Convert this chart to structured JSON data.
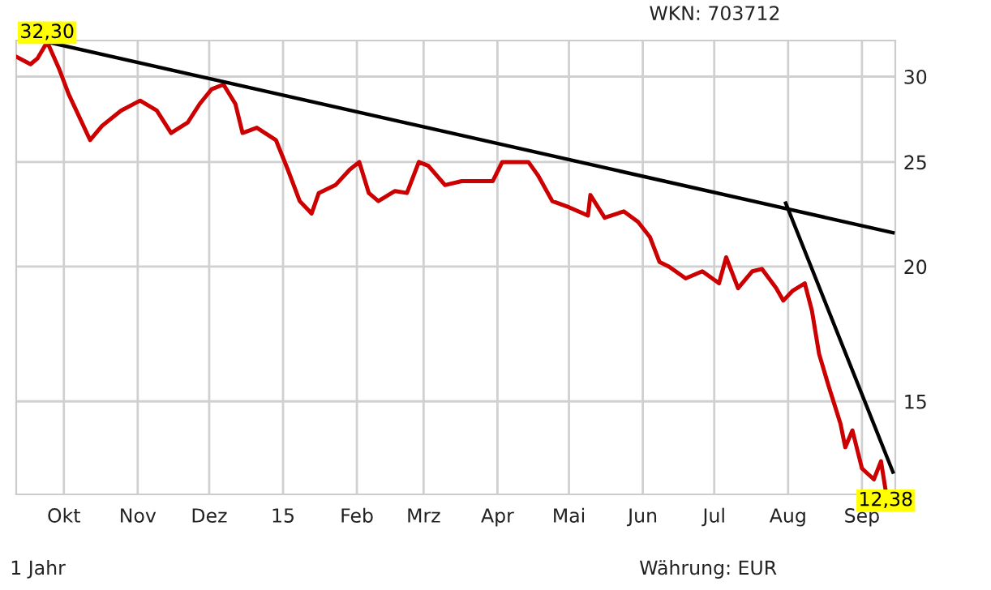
{
  "chart_data": {
    "type": "line",
    "log": "y",
    "grid": true,
    "x": [
      "2014-09-11",
      "2014-09-17",
      "2014-09-20",
      "2014-09-24",
      "2014-09-29",
      "2014-10-03",
      "2014-10-12",
      "2014-10-17",
      "2014-10-25",
      "2014-11-02",
      "2014-11-09",
      "2014-11-15",
      "2014-11-22",
      "2014-11-27",
      "2014-12-02",
      "2014-12-07",
      "2014-12-12",
      "2014-12-15",
      "2014-12-21",
      "2014-12-29",
      "2015-01-03",
      "2015-01-08",
      "2015-01-13",
      "2015-01-16",
      "2015-01-23",
      "2015-01-29",
      "2015-02-02",
      "2015-02-06",
      "2015-02-10",
      "2015-02-17",
      "2015-02-22",
      "2015-02-27",
      "2015-03-03",
      "2015-03-10",
      "2015-03-17",
      "2015-03-23",
      "2015-03-30",
      "2015-04-03",
      "2015-04-14",
      "2015-04-18",
      "2015-04-24",
      "2015-05-01",
      "2015-05-09",
      "2015-05-10",
      "2015-05-16",
      "2015-05-24",
      "2015-05-30",
      "2015-06-04",
      "2015-06-08",
      "2015-06-12",
      "2015-06-19",
      "2015-06-26",
      "2015-07-03",
      "2015-07-06",
      "2015-07-11",
      "2015-07-17",
      "2015-07-21",
      "2015-07-27",
      "2015-07-30",
      "2015-08-03",
      "2015-08-08",
      "2015-08-11",
      "2015-08-14",
      "2015-08-18",
      "2015-08-23",
      "2015-08-25",
      "2015-08-28",
      "2015-09-01",
      "2015-09-06",
      "2015-09-09",
      "2015-09-11"
    ],
    "series": [
      {
        "color": "#cc0000",
        "line_style": "solid",
        "values": [
          31.3,
          30.8,
          31.2,
          32.3,
          30.5,
          28.9,
          26.2,
          27.0,
          27.9,
          28.5,
          27.9,
          26.6,
          27.2,
          28.3,
          29.2,
          29.5,
          28.3,
          26.6,
          26.9,
          26.2,
          24.6,
          23.0,
          22.4,
          23.4,
          23.8,
          24.6,
          25.0,
          23.4,
          23.0,
          23.5,
          23.4,
          25.0,
          24.8,
          23.8,
          24.0,
          24.0,
          24.0,
          25.0,
          25.0,
          24.3,
          23.0,
          22.7,
          22.3,
          23.3,
          22.2,
          22.5,
          22.0,
          21.3,
          20.2,
          20.0,
          19.5,
          19.8,
          19.3,
          20.4,
          19.1,
          19.8,
          19.9,
          19.1,
          18.6,
          19.0,
          19.3,
          18.2,
          16.6,
          15.5,
          14.3,
          13.6,
          14.1,
          13.0,
          12.7,
          13.2,
          12.38
        ]
      },
      {
        "type": "line",
        "color": "#000000",
        "x": [
          "2014-09-24",
          "2015-09-14"
        ],
        "values": [
          32.3,
          21.5
        ]
      },
      {
        "type": "line",
        "color": "#000000",
        "x": [
          "2015-07-31",
          "2015-09-14"
        ],
        "values": [
          22.9,
          12.9
        ]
      }
    ],
    "xlim": [
      "2014-09-11",
      "2015-09-15"
    ],
    "xticks": [
      {
        "value": "2014-10-01",
        "label": "Okt"
      },
      {
        "value": "2014-11-01",
        "label": "Nov"
      },
      {
        "value": "2014-12-01",
        "label": "Dez"
      },
      {
        "value": "2015-01-01",
        "label": "15"
      },
      {
        "value": "2015-02-01",
        "label": "Feb"
      },
      {
        "value": "2015-03-01",
        "label": "Mrz"
      },
      {
        "value": "2015-04-01",
        "label": "Apr"
      },
      {
        "value": "2015-05-01",
        "label": "Mai"
      },
      {
        "value": "2015-06-01",
        "label": "Jun"
      },
      {
        "value": "2015-07-01",
        "label": "Jul"
      },
      {
        "value": "2015-08-01",
        "label": "Aug"
      },
      {
        "value": "2015-09-01",
        "label": "Sep"
      }
    ],
    "ylim": [
      12.3,
      32.4
    ],
    "yticks": [
      15,
      20,
      25,
      30
    ],
    "annotations": [
      {
        "text": "32,30",
        "x": "2014-09-24",
        "y": 32.3
      },
      {
        "text": "12,38",
        "x": "2015-09-11",
        "y": 12.38
      },
      "WKN: 703712",
      "1 Jahr",
      "Währung: EUR"
    ]
  }
}
